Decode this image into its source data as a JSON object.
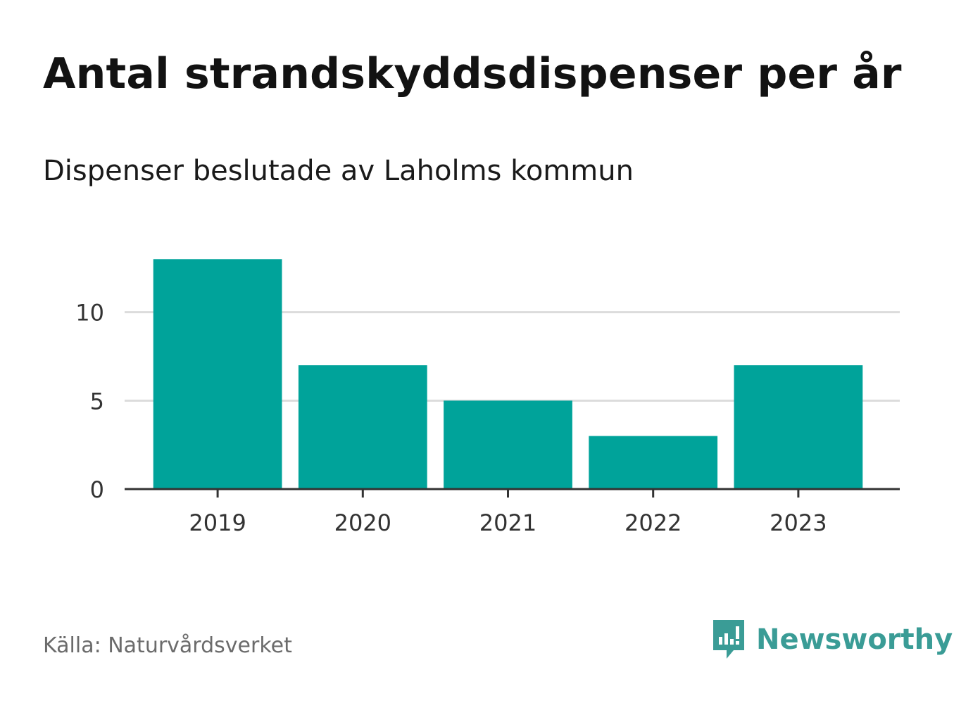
{
  "chart_data": {
    "type": "bar",
    "title": "Antal strandskyddsdispenser per år",
    "subtitle": "Dispenser beslutade av Laholms kommun",
    "categories": [
      "2019",
      "2020",
      "2021",
      "2022",
      "2023"
    ],
    "values": [
      13,
      7,
      5,
      3,
      7
    ],
    "xlabel": "",
    "ylabel": "",
    "ylim": [
      0,
      15
    ],
    "yticks": [
      0,
      5,
      10
    ],
    "grid": true,
    "bar_color": "#00a39a"
  },
  "footer": {
    "source": "Källa: Naturvårdsverket",
    "brand": "Newsworthy",
    "brand_icon": "newsworthy-logo-icon",
    "brand_color": "#3a9c96"
  }
}
